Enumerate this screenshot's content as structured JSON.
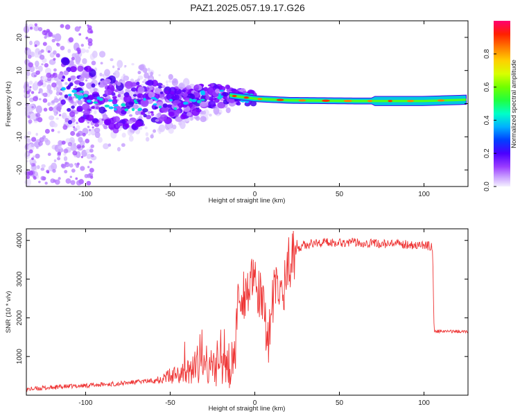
{
  "title": "PAZ1.2025.057.19.17.G26",
  "chart_data": [
    {
      "type": "heatmap",
      "xlabel": "Height of straight line (km)",
      "ylabel": "Frequency (Hz)",
      "xlim": [
        -135,
        126
      ],
      "ylim": [
        -25,
        25
      ],
      "xticks": [
        -100,
        -50,
        0,
        50,
        100
      ],
      "yticks": [
        -20,
        -10,
        0,
        10,
        20
      ],
      "ridge": [
        {
          "x": -115,
          "y": 3.5
        },
        {
          "x": -100,
          "y": 2.5
        },
        {
          "x": -85,
          "y": -0.5
        },
        {
          "x": -75,
          "y": -1.0
        },
        {
          "x": -60,
          "y": 0.5
        },
        {
          "x": -45,
          "y": -0.5
        },
        {
          "x": -30,
          "y": 2.5
        },
        {
          "x": -15,
          "y": 2.5
        },
        {
          "x": 0,
          "y": 1.5
        },
        {
          "x": 20,
          "y": 1.0
        },
        {
          "x": 60,
          "y": 0.8
        },
        {
          "x": 100,
          "y": 0.8
        },
        {
          "x": 126,
          "y": 1.2
        }
      ],
      "colorbar": {
        "label": "Normalized spectral amplitude",
        "range": [
          0,
          1
        ],
        "ticks": [
          "0.0",
          "0.2",
          "0.4",
          "0.6",
          "0.8"
        ]
      }
    },
    {
      "type": "line",
      "xlabel": "Height of straight line (km)",
      "ylabel": "SNR (10 * v/v)",
      "xlim": [
        -135,
        126
      ],
      "ylim": [
        0,
        4300
      ],
      "xticks": [
        -100,
        -50,
        0,
        50,
        100
      ],
      "yticks": [
        1000,
        2000,
        3000,
        4000
      ],
      "color": "#ee3333",
      "series": [
        {
          "values": [
            {
              "x": -135,
              "y": 150
            },
            {
              "x": -120,
              "y": 200
            },
            {
              "x": -100,
              "y": 250
            },
            {
              "x": -80,
              "y": 300
            },
            {
              "x": -60,
              "y": 380
            },
            {
              "x": -50,
              "y": 500
            },
            {
              "x": -40,
              "y": 600
            },
            {
              "x": -30,
              "y": 700
            },
            {
              "x": -20,
              "y": 700
            },
            {
              "x": -12,
              "y": 800
            },
            {
              "x": -10,
              "y": 2500
            },
            {
              "x": -5,
              "y": 2700
            },
            {
              "x": 0,
              "y": 2900
            },
            {
              "x": 4,
              "y": 2400
            },
            {
              "x": 8,
              "y": 1500
            },
            {
              "x": 12,
              "y": 2800
            },
            {
              "x": 16,
              "y": 2600
            },
            {
              "x": 20,
              "y": 3400
            },
            {
              "x": 25,
              "y": 3800
            },
            {
              "x": 30,
              "y": 3900
            },
            {
              "x": 40,
              "y": 3950
            },
            {
              "x": 60,
              "y": 3950
            },
            {
              "x": 80,
              "y": 3900
            },
            {
              "x": 90,
              "y": 3900
            },
            {
              "x": 105,
              "y": 3850
            },
            {
              "x": 106,
              "y": 1650
            },
            {
              "x": 126,
              "y": 1650
            }
          ]
        }
      ]
    }
  ]
}
